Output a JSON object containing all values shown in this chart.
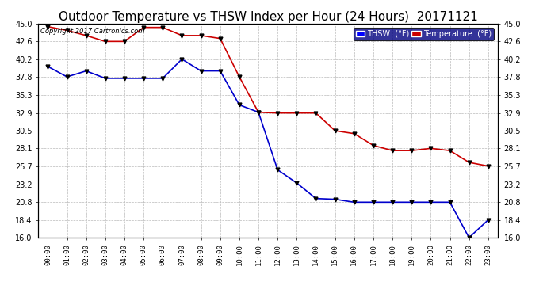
{
  "title": "Outdoor Temperature vs THSW Index per Hour (24 Hours)  20171121",
  "copyright": "Copyright 2017 Cartronics.com",
  "hours": [
    "00:00",
    "01:00",
    "02:00",
    "03:00",
    "04:00",
    "05:00",
    "06:00",
    "07:00",
    "08:00",
    "09:00",
    "10:00",
    "11:00",
    "12:00",
    "13:00",
    "14:00",
    "15:00",
    "16:00",
    "17:00",
    "18:00",
    "19:00",
    "20:00",
    "21:00",
    "22:00",
    "23:00"
  ],
  "temperature": [
    44.6,
    44.1,
    43.4,
    42.6,
    42.6,
    44.5,
    44.5,
    43.4,
    43.4,
    43.0,
    37.8,
    33.0,
    32.9,
    32.9,
    32.9,
    30.5,
    30.1,
    28.5,
    27.8,
    27.8,
    28.1,
    27.8,
    26.2,
    25.7
  ],
  "thsw": [
    39.2,
    37.8,
    38.6,
    37.6,
    37.6,
    37.6,
    37.6,
    40.2,
    38.6,
    38.6,
    34.0,
    33.0,
    25.2,
    23.4,
    21.3,
    21.2,
    20.8,
    20.8,
    20.8,
    20.8,
    20.8,
    20.8,
    16.0,
    18.4
  ],
  "temp_color": "#cc0000",
  "thsw_color": "#0000cc",
  "bg_color": "#ffffff",
  "grid_color": "#bbbbbb",
  "ylim_min": 16.0,
  "ylim_max": 45.0,
  "yticks": [
    16.0,
    18.4,
    20.8,
    23.2,
    25.7,
    28.1,
    30.5,
    32.9,
    35.3,
    37.8,
    40.2,
    42.6,
    45.0
  ],
  "title_fontsize": 11,
  "legend_thsw_label": "THSW  (°F)",
  "legend_temp_label": "Temperature  (°F)",
  "marker": "v",
  "marker_color": "#000000",
  "marker_size": 3.5,
  "line_width": 1.2,
  "legend_bg": "#000080",
  "thsw_legend_color": "#0000ff",
  "temp_legend_color": "#cc0000"
}
